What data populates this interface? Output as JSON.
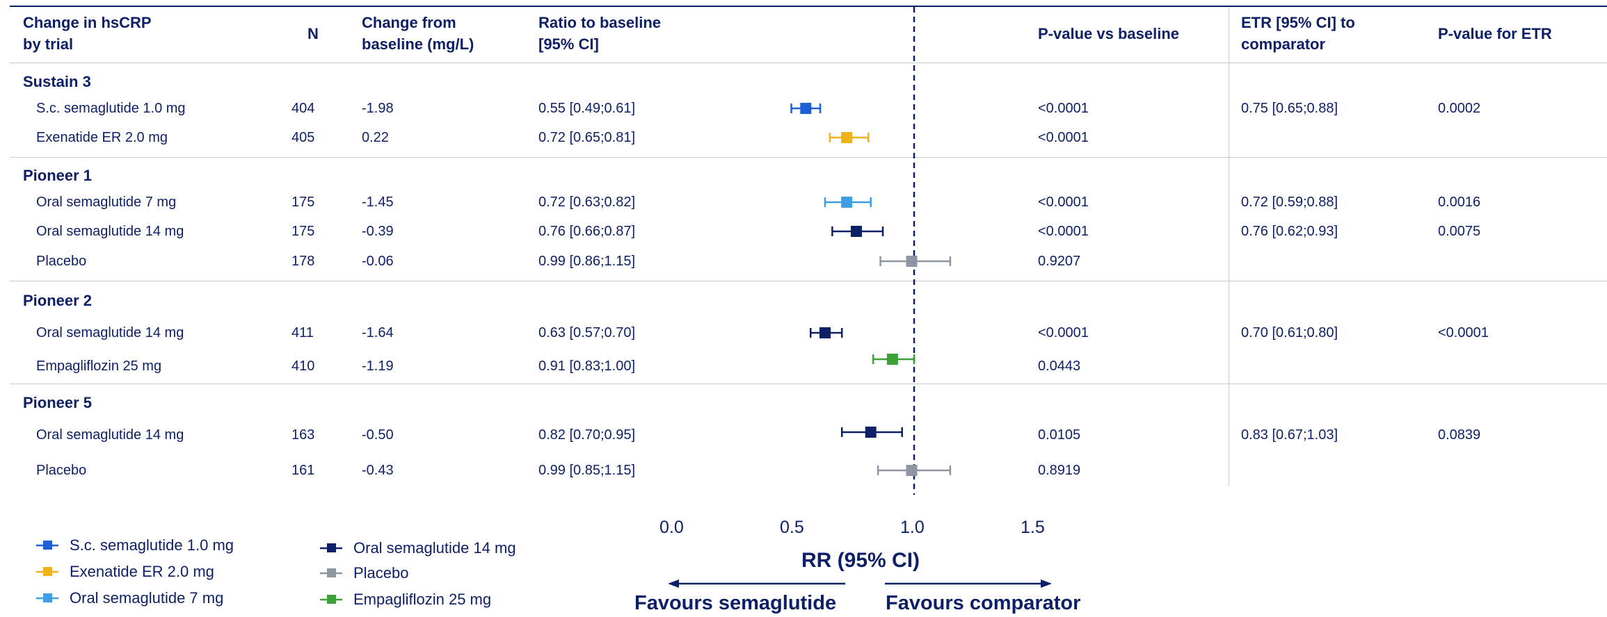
{
  "header": {
    "trial": [
      "Change in hsCRP",
      "by trial"
    ],
    "n": "N",
    "change": [
      "Change from",
      "baseline (mg/L)"
    ],
    "ratio": [
      "Ratio to baseline",
      "[95% CI]"
    ],
    "pvalue": "P-value vs baseline",
    "etr": [
      "ETR [95% CI] to",
      "comparator"
    ],
    "petr": "P-value for ETR"
  },
  "groups": [
    {
      "name": "Sustain 3",
      "rows": [
        {
          "label": "S.c. semaglutide 1.0 mg",
          "n": "404",
          "change": "-1.98",
          "ratio": "0.55 [0.49;0.61]",
          "p": "<0.0001",
          "etr": "0.75 [0.65;0.88]",
          "petr": "0.0002"
        },
        {
          "label": "Exenatide ER 2.0 mg",
          "n": "405",
          "change": "0.22",
          "ratio": "0.72 [0.65;0.81]",
          "p": "<0.0001",
          "etr": "",
          "petr": ""
        }
      ]
    },
    {
      "name": "Pioneer 1",
      "rows": [
        {
          "label": "Oral semaglutide 7 mg",
          "n": "175",
          "change": "-1.45",
          "ratio": "0.72 [0.63;0.82]",
          "p": "<0.0001",
          "etr": "0.72 [0.59;0.88]",
          "petr": "0.0016"
        },
        {
          "label": "Oral semaglutide 14 mg",
          "n": "175",
          "change": "-0.39",
          "ratio": "0.76 [0.66;0.87]",
          "p": "<0.0001",
          "etr": "0.76 [0.62;0.93]",
          "petr": "0.0075"
        },
        {
          "label": "Placebo",
          "n": "178",
          "change": "-0.06",
          "ratio": "0.99 [0.86;1.15]",
          "p": "0.9207",
          "etr": "",
          "petr": ""
        }
      ]
    },
    {
      "name": "Pioneer 2",
      "rows": [
        {
          "label": "Oral semaglutide 14 mg",
          "n": "411",
          "change": "-1.64",
          "ratio": "0.63 [0.57;0.70]",
          "p": "<0.0001",
          "etr": "0.70 [0.61;0.80]",
          "petr": "<0.0001"
        },
        {
          "label": "Empagliflozin 25 mg",
          "n": "410",
          "change": "-1.19",
          "ratio": "0.91 [0.83;1.00]",
          "p": "0.0443",
          "etr": "",
          "petr": ""
        }
      ]
    },
    {
      "name": "Pioneer 5",
      "rows": [
        {
          "label": "Oral semaglutide 14 mg",
          "n": "163",
          "change": "-0.50",
          "ratio": "0.82 [0.70;0.95]",
          "p": "0.0105",
          "etr": "0.83 [0.67;1.03]",
          "petr": "0.0839"
        },
        {
          "label": "Placebo",
          "n": "161",
          "change": "-0.43",
          "ratio": "0.99 [0.85;1.15]",
          "p": "0.8919",
          "etr": "",
          "petr": ""
        }
      ]
    }
  ],
  "chart_data": {
    "type": "scatter",
    "subtype": "forest",
    "xlabel": "RR (95% CI)",
    "xlim": [
      0.0,
      1.5
    ],
    "xticks": [
      "0.0",
      "0.5",
      "1.0",
      "1.5"
    ],
    "reference_line": 1.0,
    "favours_left": "Favours semaglutide",
    "favours_right": "Favours comparator",
    "points": [
      {
        "label": "S.c. semaglutide 1.0 mg",
        "series": "sc",
        "est": 0.55,
        "lo": 0.49,
        "hi": 0.61
      },
      {
        "label": "Exenatide ER 2.0 mg",
        "series": "exe",
        "est": 0.72,
        "lo": 0.65,
        "hi": 0.81
      },
      {
        "label": "Oral semaglutide 7 mg",
        "series": "os7",
        "est": 0.72,
        "lo": 0.63,
        "hi": 0.82
      },
      {
        "label": "Oral semaglutide 14 mg",
        "series": "os14",
        "est": 0.76,
        "lo": 0.66,
        "hi": 0.87
      },
      {
        "label": "Placebo",
        "series": "pbo",
        "est": 0.99,
        "lo": 0.86,
        "hi": 1.15
      },
      {
        "label": "Oral semaglutide 14 mg",
        "series": "os14",
        "est": 0.63,
        "lo": 0.57,
        "hi": 0.7
      },
      {
        "label": "Empagliflozin 25 mg",
        "series": "emp",
        "est": 0.91,
        "lo": 0.83,
        "hi": 1.0
      },
      {
        "label": "Oral semaglutide 14 mg",
        "series": "os14",
        "est": 0.82,
        "lo": 0.7,
        "hi": 0.95
      },
      {
        "label": "Placebo",
        "series": "pbo",
        "est": 0.99,
        "lo": 0.85,
        "hi": 1.15
      }
    ],
    "series": [
      {
        "key": "sc",
        "name": "S.c. semaglutide 1.0 mg",
        "color": "#1f5fd6"
      },
      {
        "key": "exe",
        "name": "Exenatide ER 2.0 mg",
        "color": "#f0b21a"
      },
      {
        "key": "os7",
        "name": "Oral semaglutide 7 mg",
        "color": "#3f9ee3"
      },
      {
        "key": "os14",
        "name": "Oral semaglutide 14 mg",
        "color": "#0d1f66"
      },
      {
        "key": "pbo",
        "name": "Placebo",
        "color": "#8f96a3"
      },
      {
        "key": "emp",
        "name": "Empagliflozin 25 mg",
        "color": "#3da13a"
      }
    ]
  }
}
